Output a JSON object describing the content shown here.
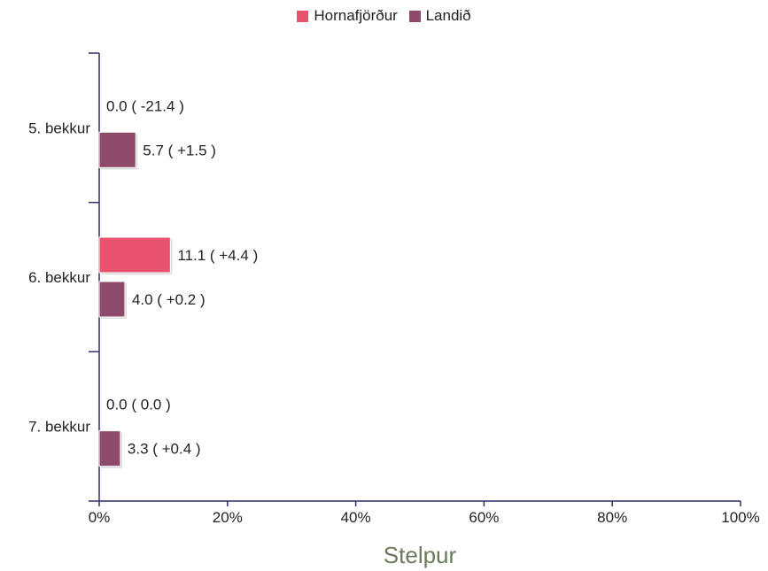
{
  "chart_data": {
    "type": "bar",
    "orientation": "horizontal",
    "categories": [
      "5. bekkur",
      "6. bekkur",
      "7. bekkur"
    ],
    "series": [
      {
        "name": "Hornafjörður",
        "color": "#e8526e",
        "values": [
          0.0,
          11.1,
          0.0
        ],
        "labels": [
          "0.0 ( -21.4 )",
          "11.1 ( +4.4 )",
          "0.0 ( 0.0 )"
        ]
      },
      {
        "name": "Landið",
        "color": "#8e4a6a",
        "values": [
          5.7,
          4.0,
          3.3
        ],
        "labels": [
          "5.7 ( +1.5 )",
          "4.0 ( +0.2 )",
          "3.3 ( +0.4 )"
        ]
      }
    ],
    "xlabel": "Stelpur",
    "ylabel": "",
    "xlim": [
      0,
      100
    ],
    "xticks": [
      "0%",
      "20%",
      "40%",
      "60%",
      "80%",
      "100%"
    ],
    "legend_position": "top-center",
    "grid": false
  }
}
